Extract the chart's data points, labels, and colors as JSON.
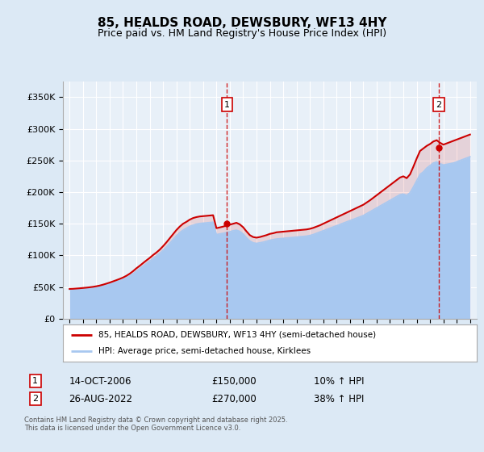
{
  "title": "85, HEALDS ROAD, DEWSBURY, WF13 4HY",
  "subtitle": "Price paid vs. HM Land Registry's House Price Index (HPI)",
  "legend_property": "85, HEALDS ROAD, DEWSBURY, WF13 4HY (semi-detached house)",
  "legend_hpi": "HPI: Average price, semi-detached house, Kirklees",
  "sale1_date": "14-OCT-2006",
  "sale1_price": 150000,
  "sale1_hpi": "10% ↑ HPI",
  "sale2_date": "26-AUG-2022",
  "sale2_price": 270000,
  "sale2_hpi": "38% ↑ HPI",
  "footnote": "Contains HM Land Registry data © Crown copyright and database right 2025.\nThis data is licensed under the Open Government Licence v3.0.",
  "ylim": [
    0,
    375000
  ],
  "yticks": [
    0,
    50000,
    100000,
    150000,
    200000,
    250000,
    300000,
    350000
  ],
  "bg_color": "#dce9f5",
  "plot_bg": "#e8f0f8",
  "grid_color": "#ffffff",
  "hpi_color": "#a8c8f0",
  "property_color": "#cc0000",
  "sale1_x": 2006.79,
  "sale2_x": 2022.65,
  "years": [
    1995.0,
    1995.25,
    1995.5,
    1995.75,
    1996.0,
    1996.25,
    1996.5,
    1996.75,
    1997.0,
    1997.25,
    1997.5,
    1997.75,
    1998.0,
    1998.25,
    1998.5,
    1998.75,
    1999.0,
    1999.25,
    1999.5,
    1999.75,
    2000.0,
    2000.25,
    2000.5,
    2000.75,
    2001.0,
    2001.25,
    2001.5,
    2001.75,
    2002.0,
    2002.25,
    2002.5,
    2002.75,
    2003.0,
    2003.25,
    2003.5,
    2003.75,
    2004.0,
    2004.25,
    2004.5,
    2004.75,
    2005.0,
    2005.25,
    2005.5,
    2005.75,
    2006.0,
    2006.25,
    2006.5,
    2006.75,
    2007.0,
    2007.25,
    2007.5,
    2007.75,
    2008.0,
    2008.25,
    2008.5,
    2008.75,
    2009.0,
    2009.25,
    2009.5,
    2009.75,
    2010.0,
    2010.25,
    2010.5,
    2010.75,
    2011.0,
    2011.25,
    2011.5,
    2011.75,
    2012.0,
    2012.25,
    2012.5,
    2012.75,
    2013.0,
    2013.25,
    2013.5,
    2013.75,
    2014.0,
    2014.25,
    2014.5,
    2014.75,
    2015.0,
    2015.25,
    2015.5,
    2015.75,
    2016.0,
    2016.25,
    2016.5,
    2016.75,
    2017.0,
    2017.25,
    2017.5,
    2017.75,
    2018.0,
    2018.25,
    2018.5,
    2018.75,
    2019.0,
    2019.25,
    2019.5,
    2019.75,
    2020.0,
    2020.25,
    2020.5,
    2020.75,
    2021.0,
    2021.25,
    2021.5,
    2021.75,
    2022.0,
    2022.25,
    2022.5,
    2022.75,
    2023.0,
    2023.25,
    2023.5,
    2023.75,
    2024.0,
    2024.25,
    2024.5,
    2024.75,
    2025.0
  ],
  "hpi_vals": [
    46000,
    46200,
    46500,
    46800,
    47200,
    47600,
    48100,
    48700,
    49500,
    50500,
    51800,
    53200,
    54800,
    56500,
    58200,
    60000,
    62000,
    64500,
    67500,
    71000,
    75000,
    79000,
    83000,
    87000,
    91000,
    95000,
    99000,
    103000,
    108000,
    113000,
    119000,
    125000,
    131000,
    136000,
    140000,
    143000,
    146000,
    148000,
    149500,
    150500,
    151000,
    151500,
    152000,
    152500,
    133000,
    134000,
    135000,
    136200,
    137500,
    139000,
    140000,
    138000,
    134000,
    128000,
    123000,
    120000,
    119000,
    120000,
    121000,
    122500,
    124000,
    125000,
    126000,
    126500,
    127000,
    127500,
    128000,
    128500,
    129000,
    129500,
    130000,
    130500,
    131500,
    133000,
    135000,
    137000,
    139000,
    141000,
    143000,
    145000,
    147000,
    149000,
    151000,
    153000,
    155000,
    157000,
    159000,
    161000,
    163000,
    166000,
    169000,
    172000,
    175000,
    178000,
    181000,
    184000,
    187000,
    190000,
    193000,
    196000,
    197000,
    195000,
    199000,
    208000,
    218000,
    228000,
    232000,
    238000,
    242000,
    246000,
    248000,
    245000,
    243000,
    244000,
    245000,
    246000,
    248000,
    250000,
    252000,
    254000,
    256000
  ],
  "prop_vals": [
    47000,
    47200,
    47600,
    48000,
    48500,
    49000,
    49600,
    50300,
    51200,
    52300,
    53700,
    55300,
    57000,
    58900,
    60800,
    62800,
    65000,
    67700,
    71000,
    75000,
    79500,
    83500,
    87800,
    92000,
    96000,
    100500,
    104500,
    109000,
    114500,
    120500,
    127000,
    133500,
    140000,
    145500,
    150000,
    153000,
    156500,
    159000,
    160500,
    161500,
    162000,
    162500,
    163000,
    163500,
    143000,
    144200,
    145500,
    147000,
    148500,
    150000,
    151500,
    149000,
    144500,
    138000,
    132000,
    129000,
    128000,
    129000,
    130500,
    132000,
    134000,
    135000,
    136500,
    137000,
    137500,
    138000,
    138500,
    139000,
    139500,
    140000,
    140500,
    141000,
    142000,
    143500,
    145500,
    147500,
    150000,
    152500,
    155000,
    157500,
    160000,
    162500,
    165000,
    167500,
    170000,
    172500,
    175000,
    177500,
    180000,
    183500,
    187000,
    191000,
    195000,
    199000,
    203000,
    207000,
    211000,
    215000,
    219000,
    223000,
    225000,
    222000,
    228000,
    240000,
    253000,
    265000,
    269000,
    273000,
    276000,
    280000,
    282000,
    278000,
    275000,
    277000,
    279000,
    281000,
    283000,
    285000,
    287000,
    289000,
    291000
  ]
}
